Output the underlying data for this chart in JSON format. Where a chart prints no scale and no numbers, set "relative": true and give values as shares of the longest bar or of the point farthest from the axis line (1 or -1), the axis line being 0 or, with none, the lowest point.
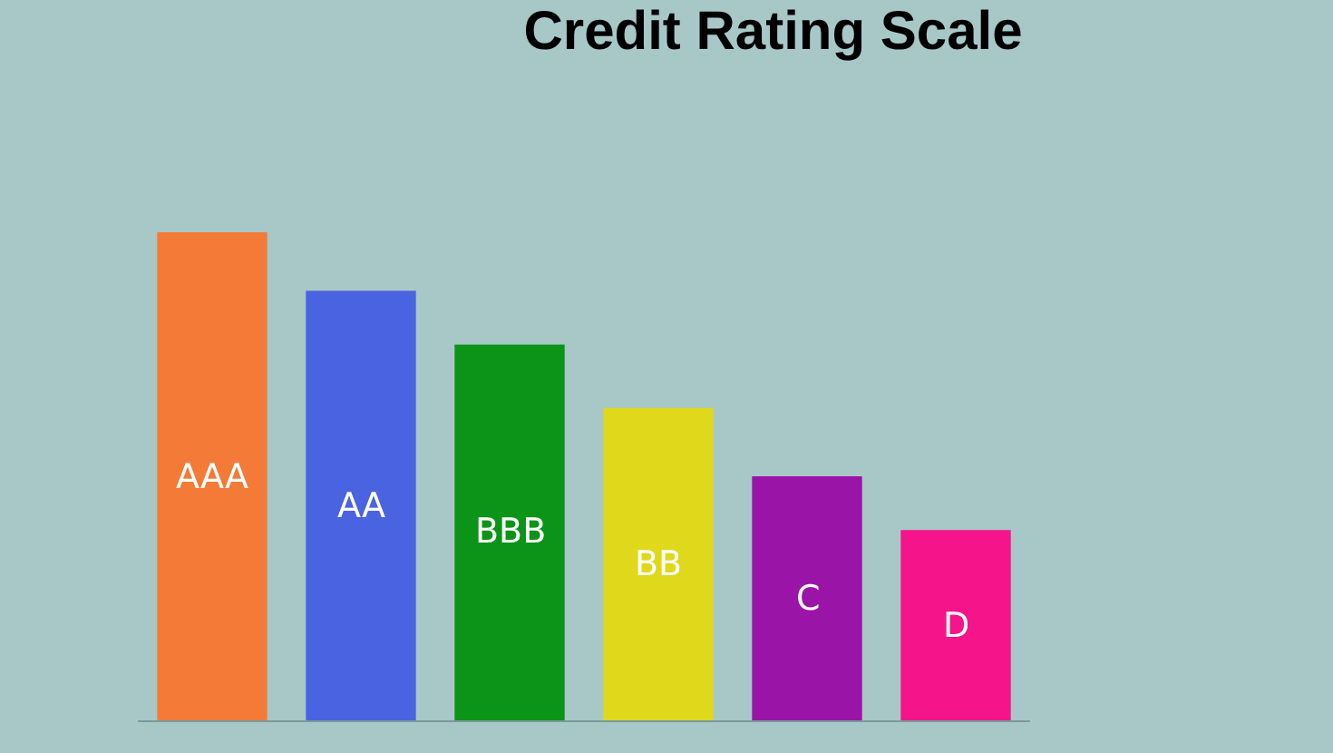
{
  "chart_data": {
    "type": "bar",
    "title": "Credit Rating Scale",
    "relative": true,
    "categories": [
      "AAA",
      "AA",
      "BBB",
      "BB",
      "C",
      "D"
    ],
    "values": [
      1,
      0.88,
      0.77,
      0.64,
      0.5,
      0.39
    ],
    "colors": [
      "#f47a38",
      "#4a63e0",
      "#0b9418",
      "#e0d81a",
      "#9b14a8",
      "#f5148a"
    ],
    "tick_labels": false,
    "grid": false,
    "legend": false
  }
}
